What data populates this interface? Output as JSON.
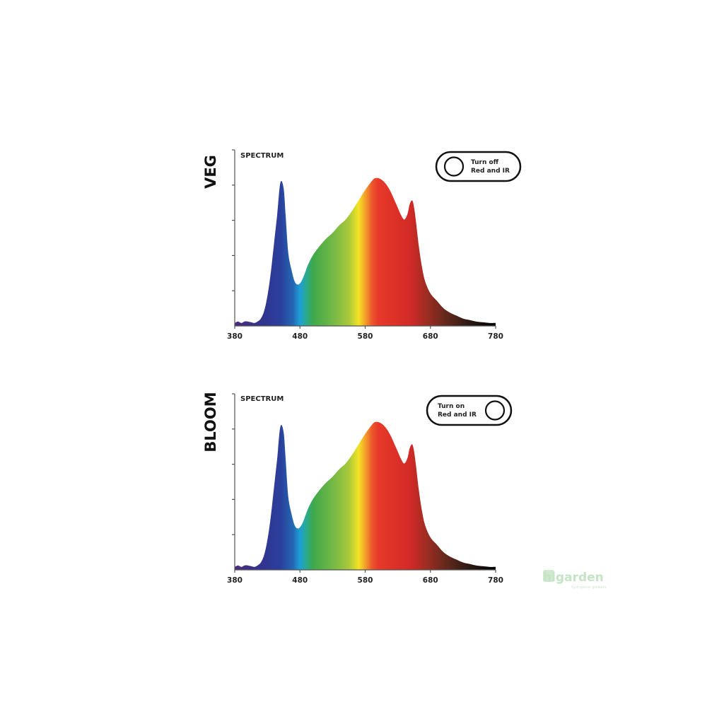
{
  "chart_data": [
    {
      "type": "area",
      "section_title": "VEG",
      "title": "SPECTRUM",
      "xlabel": "",
      "ylabel": "",
      "xlim": [
        380,
        780
      ],
      "ylim": [
        0,
        1
      ],
      "grid": false,
      "xticks": [
        "380",
        "480",
        "580",
        "680",
        "780"
      ],
      "y_tick_count": 5,
      "series": [
        {
          "x": [
            380,
            385,
            390,
            395,
            400,
            405,
            410,
            415,
            420,
            425,
            430,
            435,
            440,
            445,
            450,
            455,
            458,
            462,
            467,
            472,
            477,
            482,
            487,
            492,
            500,
            510,
            520,
            530,
            540,
            550,
            560,
            570,
            580,
            590,
            595,
            600,
            605,
            610,
            615,
            620,
            625,
            630,
            635,
            640,
            645,
            648,
            652,
            655,
            658,
            662,
            667,
            672,
            680,
            690,
            700,
            710,
            720,
            730,
            740,
            750,
            760,
            770,
            780
          ],
          "values": [
            0.02,
            0.03,
            0.02,
            0.03,
            0.03,
            0.025,
            0.02,
            0.03,
            0.05,
            0.1,
            0.2,
            0.35,
            0.55,
            0.75,
            0.97,
            0.93,
            0.75,
            0.5,
            0.38,
            0.3,
            0.28,
            0.3,
            0.35,
            0.41,
            0.48,
            0.54,
            0.59,
            0.63,
            0.68,
            0.72,
            0.78,
            0.85,
            0.92,
            0.98,
            1.0,
            1.0,
            0.99,
            0.97,
            0.94,
            0.9,
            0.85,
            0.8,
            0.75,
            0.72,
            0.76,
            0.82,
            0.85,
            0.8,
            0.7,
            0.55,
            0.4,
            0.3,
            0.22,
            0.17,
            0.12,
            0.09,
            0.07,
            0.05,
            0.04,
            0.03,
            0.025,
            0.02,
            0.02
          ]
        }
      ],
      "toggle": {
        "label_line1": "Turn off",
        "label_line2": "Red and IR",
        "state": "off",
        "knob_side": "left"
      }
    },
    {
      "type": "area",
      "section_title": "BLOOM",
      "title": "SPECTRUM",
      "xlabel": "",
      "ylabel": "",
      "xlim": [
        380,
        780
      ],
      "ylim": [
        0,
        1
      ],
      "grid": false,
      "xticks": [
        "380",
        "480",
        "580",
        "680",
        "780"
      ],
      "y_tick_count": 5,
      "series": [
        {
          "x": [
            380,
            385,
            390,
            395,
            400,
            405,
            410,
            415,
            420,
            425,
            430,
            435,
            440,
            445,
            450,
            455,
            458,
            462,
            467,
            472,
            477,
            482,
            487,
            492,
            500,
            510,
            520,
            530,
            540,
            550,
            560,
            570,
            580,
            590,
            595,
            600,
            605,
            610,
            615,
            620,
            625,
            630,
            635,
            640,
            645,
            648,
            652,
            655,
            658,
            662,
            667,
            672,
            680,
            690,
            700,
            710,
            720,
            730,
            740,
            750,
            760,
            770,
            780
          ],
          "values": [
            0.02,
            0.03,
            0.02,
            0.03,
            0.03,
            0.025,
            0.02,
            0.03,
            0.05,
            0.1,
            0.2,
            0.35,
            0.55,
            0.75,
            0.97,
            0.93,
            0.75,
            0.5,
            0.38,
            0.3,
            0.28,
            0.3,
            0.35,
            0.41,
            0.48,
            0.54,
            0.59,
            0.63,
            0.68,
            0.72,
            0.78,
            0.85,
            0.92,
            0.98,
            1.0,
            1.0,
            0.99,
            0.97,
            0.94,
            0.9,
            0.85,
            0.8,
            0.75,
            0.72,
            0.76,
            0.82,
            0.85,
            0.8,
            0.7,
            0.55,
            0.4,
            0.3,
            0.22,
            0.17,
            0.12,
            0.09,
            0.07,
            0.05,
            0.04,
            0.03,
            0.025,
            0.02,
            0.02
          ]
        }
      ],
      "toggle": {
        "label_line1": "Turn on",
        "label_line2": "Red and IR",
        "state": "on",
        "knob_side": "right"
      }
    }
  ],
  "spectrum_colors": [
    {
      "wl": 380,
      "color": "#4b2c7a"
    },
    {
      "wl": 420,
      "color": "#32338d"
    },
    {
      "wl": 450,
      "color": "#2b3f9c"
    },
    {
      "wl": 470,
      "color": "#2369b3"
    },
    {
      "wl": 480,
      "color": "#1e9fd6"
    },
    {
      "wl": 490,
      "color": "#2aa98f"
    },
    {
      "wl": 500,
      "color": "#3fa84a"
    },
    {
      "wl": 530,
      "color": "#73b846"
    },
    {
      "wl": 555,
      "color": "#a9c83b"
    },
    {
      "wl": 570,
      "color": "#f4e324"
    },
    {
      "wl": 580,
      "color": "#f3a12a"
    },
    {
      "wl": 590,
      "color": "#ec5a2b"
    },
    {
      "wl": 600,
      "color": "#e8392b"
    },
    {
      "wl": 650,
      "color": "#d12a26"
    },
    {
      "wl": 670,
      "color": "#a62c23"
    },
    {
      "wl": 700,
      "color": "#6b2a1e"
    },
    {
      "wl": 740,
      "color": "#2a1a14"
    },
    {
      "wl": 780,
      "color": "#000000"
    }
  ],
  "watermark": {
    "main": "higarden",
    "sub": "hydroponic growers"
  }
}
